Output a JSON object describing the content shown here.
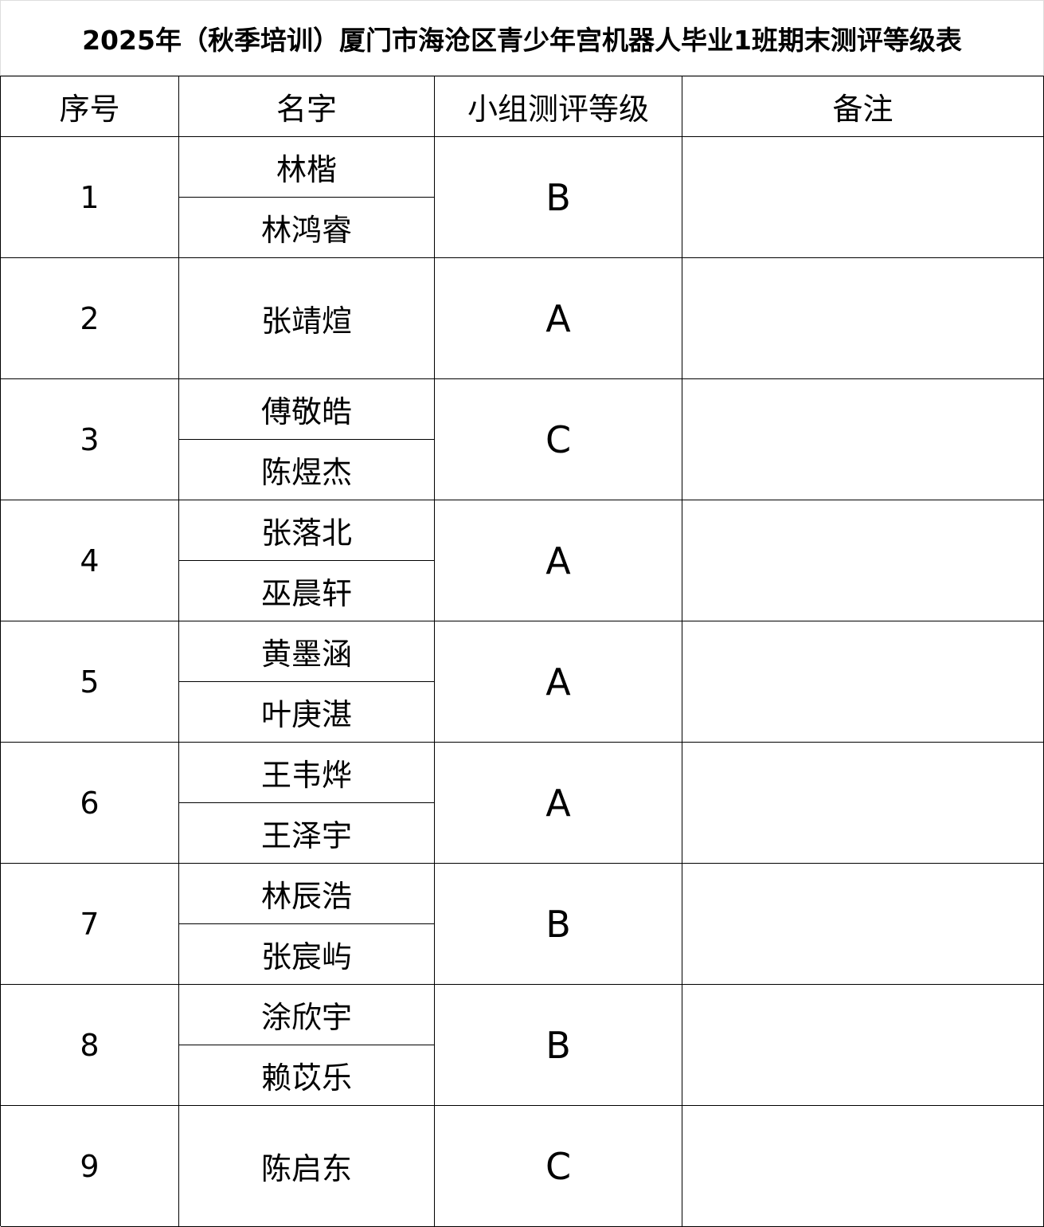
{
  "header": {
    "title": "2025年（秋季培训）厦门市海沧区青少年宫机器人毕业1班期末测评等级表"
  },
  "table": {
    "columns": [
      "序号",
      "名字",
      "小组测评等级",
      "备注"
    ],
    "rows": [
      {
        "index": 1,
        "names": [
          "林楷",
          "林鸿睿"
        ],
        "grade": "B"
      },
      {
        "index": 2,
        "names": [
          "张靖煊"
        ],
        "grade": "A"
      },
      {
        "index": 3,
        "names": [
          "傅敬皓",
          "陈煜杰"
        ],
        "grade": "C"
      },
      {
        "index": 4,
        "names": [
          "张落北",
          "巫晨轩"
        ],
        "grade": "A"
      },
      {
        "index": 5,
        "names": [
          "黄墨涵",
          "叶庚湛"
        ],
        "grade": "A"
      },
      {
        "index": 6,
        "names": [
          "王韦烨",
          "王泽宇"
        ],
        "grade": "A"
      },
      {
        "index": 7,
        "names": [
          "林辰浩",
          "张宸屿"
        ],
        "grade": "B"
      },
      {
        "index": 8,
        "names": [
          "涂欣宇",
          "赖苡乐"
        ],
        "grade": "B"
      },
      {
        "index": 9,
        "names": [
          "陈启东"
        ],
        "grade": "C"
      }
    ]
  }
}
